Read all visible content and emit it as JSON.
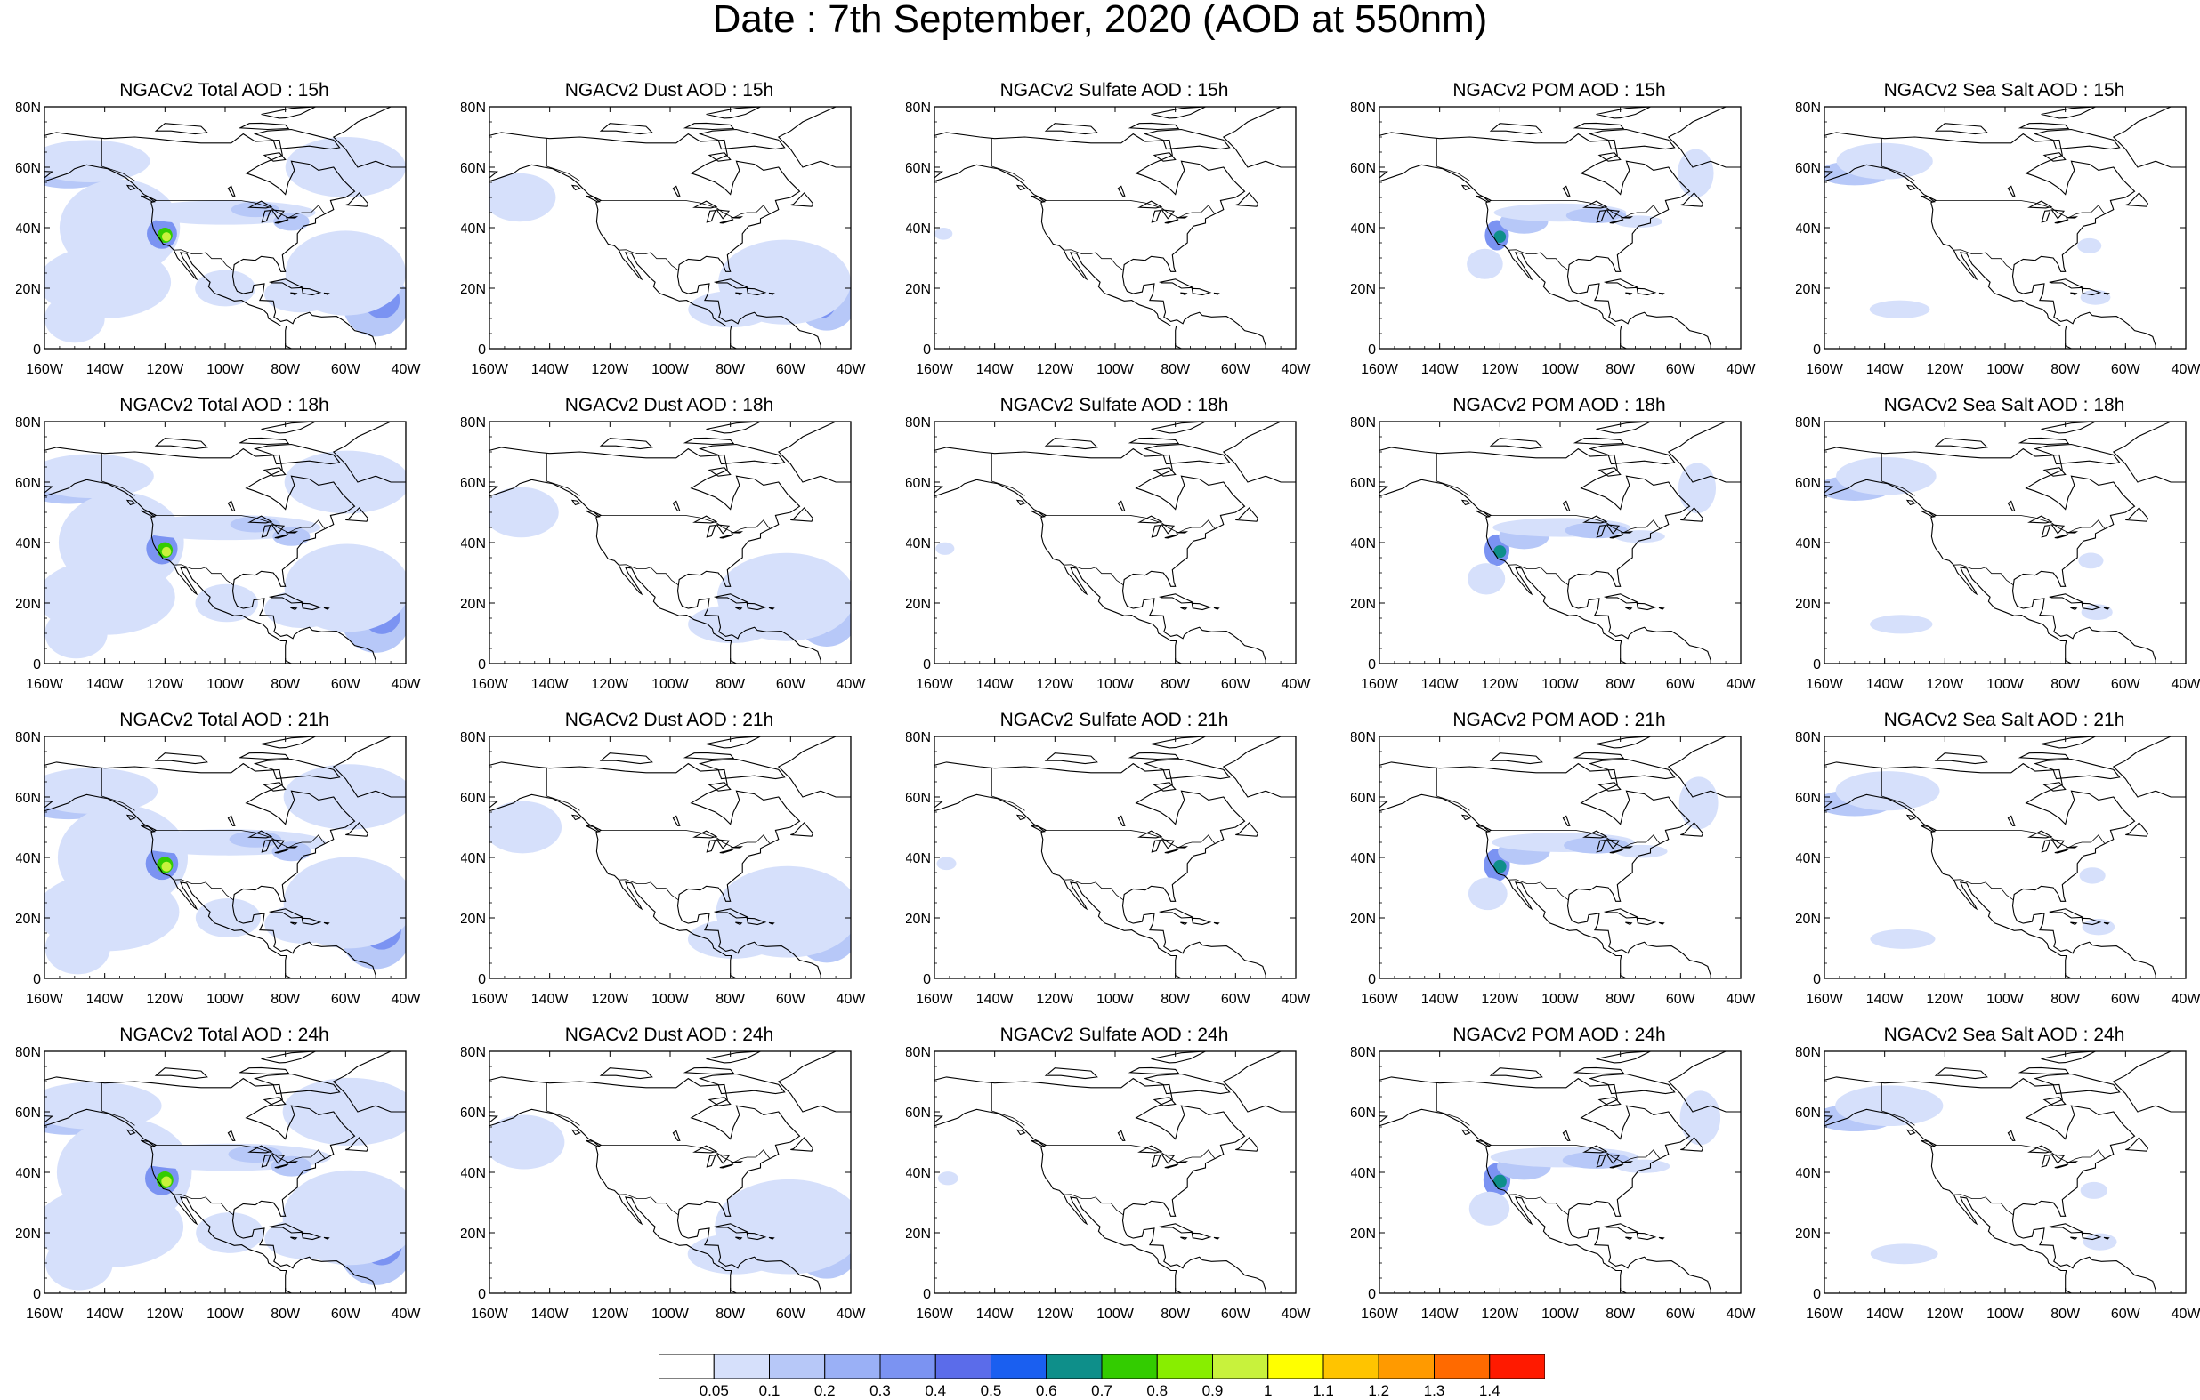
{
  "title": "Date : 7th September, 2020 (AOD at 550nm)",
  "axes": {
    "lat_ticks": [
      "80N",
      "60N",
      "40N",
      "20N",
      "0"
    ],
    "lon_ticks": [
      "160W",
      "140W",
      "120W",
      "100W",
      "80W",
      "60W",
      "40W"
    ]
  },
  "panels": [
    {
      "title": "NGACv2 Total AOD : 15h",
      "species": "total",
      "hour": 15
    },
    {
      "title": "NGACv2 Dust AOD : 15h",
      "species": "dust",
      "hour": 15
    },
    {
      "title": "NGACv2 Sulfate AOD : 15h",
      "species": "sulfate",
      "hour": 15
    },
    {
      "title": "NGACv2 POM AOD : 15h",
      "species": "pom",
      "hour": 15
    },
    {
      "title": "NGACv2 Sea Salt AOD : 15h",
      "species": "seasalt",
      "hour": 15
    },
    {
      "title": "NGACv2 Total AOD : 18h",
      "species": "total",
      "hour": 18
    },
    {
      "title": "NGACv2 Dust AOD : 18h",
      "species": "dust",
      "hour": 18
    },
    {
      "title": "NGACv2 Sulfate AOD : 18h",
      "species": "sulfate",
      "hour": 18
    },
    {
      "title": "NGACv2 POM AOD : 18h",
      "species": "pom",
      "hour": 18
    },
    {
      "title": "NGACv2 Sea Salt AOD : 18h",
      "species": "seasalt",
      "hour": 18
    },
    {
      "title": "NGACv2 Total AOD : 21h",
      "species": "total",
      "hour": 21
    },
    {
      "title": "NGACv2 Dust AOD : 21h",
      "species": "dust",
      "hour": 21
    },
    {
      "title": "NGACv2 Sulfate AOD : 21h",
      "species": "sulfate",
      "hour": 21
    },
    {
      "title": "NGACv2 POM AOD : 21h",
      "species": "pom",
      "hour": 21
    },
    {
      "title": "NGACv2 Sea Salt AOD : 21h",
      "species": "seasalt",
      "hour": 21
    },
    {
      "title": "NGACv2 Total AOD : 24h",
      "species": "total",
      "hour": 24
    },
    {
      "title": "NGACv2 Dust AOD : 24h",
      "species": "dust",
      "hour": 24
    },
    {
      "title": "NGACv2 Sulfate AOD : 24h",
      "species": "sulfate",
      "hour": 24
    },
    {
      "title": "NGACv2 POM AOD : 24h",
      "species": "pom",
      "hour": 24
    },
    {
      "title": "NGACv2 Sea Salt  AOD : 24h",
      "species": "seasalt",
      "hour": 24
    }
  ],
  "colorbar": {
    "labels": [
      "0.05",
      "0.1",
      "0.2",
      "0.3",
      "0.4",
      "0.5",
      "0.6",
      "0.7",
      "0.8",
      "0.9",
      "1",
      "1.1",
      "1.2",
      "1.3",
      "1.4"
    ],
    "colors": [
      "#ffffff",
      "#d6e0fb",
      "#b7c8f8",
      "#9ab0f6",
      "#7b93f2",
      "#5b6cea",
      "#1a5ff0",
      "#0e8f8a",
      "#33cc00",
      "#88ee00",
      "#c8f23c",
      "#ffff00",
      "#ffc400",
      "#ff9a00",
      "#ff6a00",
      "#ff1a00"
    ]
  }
}
